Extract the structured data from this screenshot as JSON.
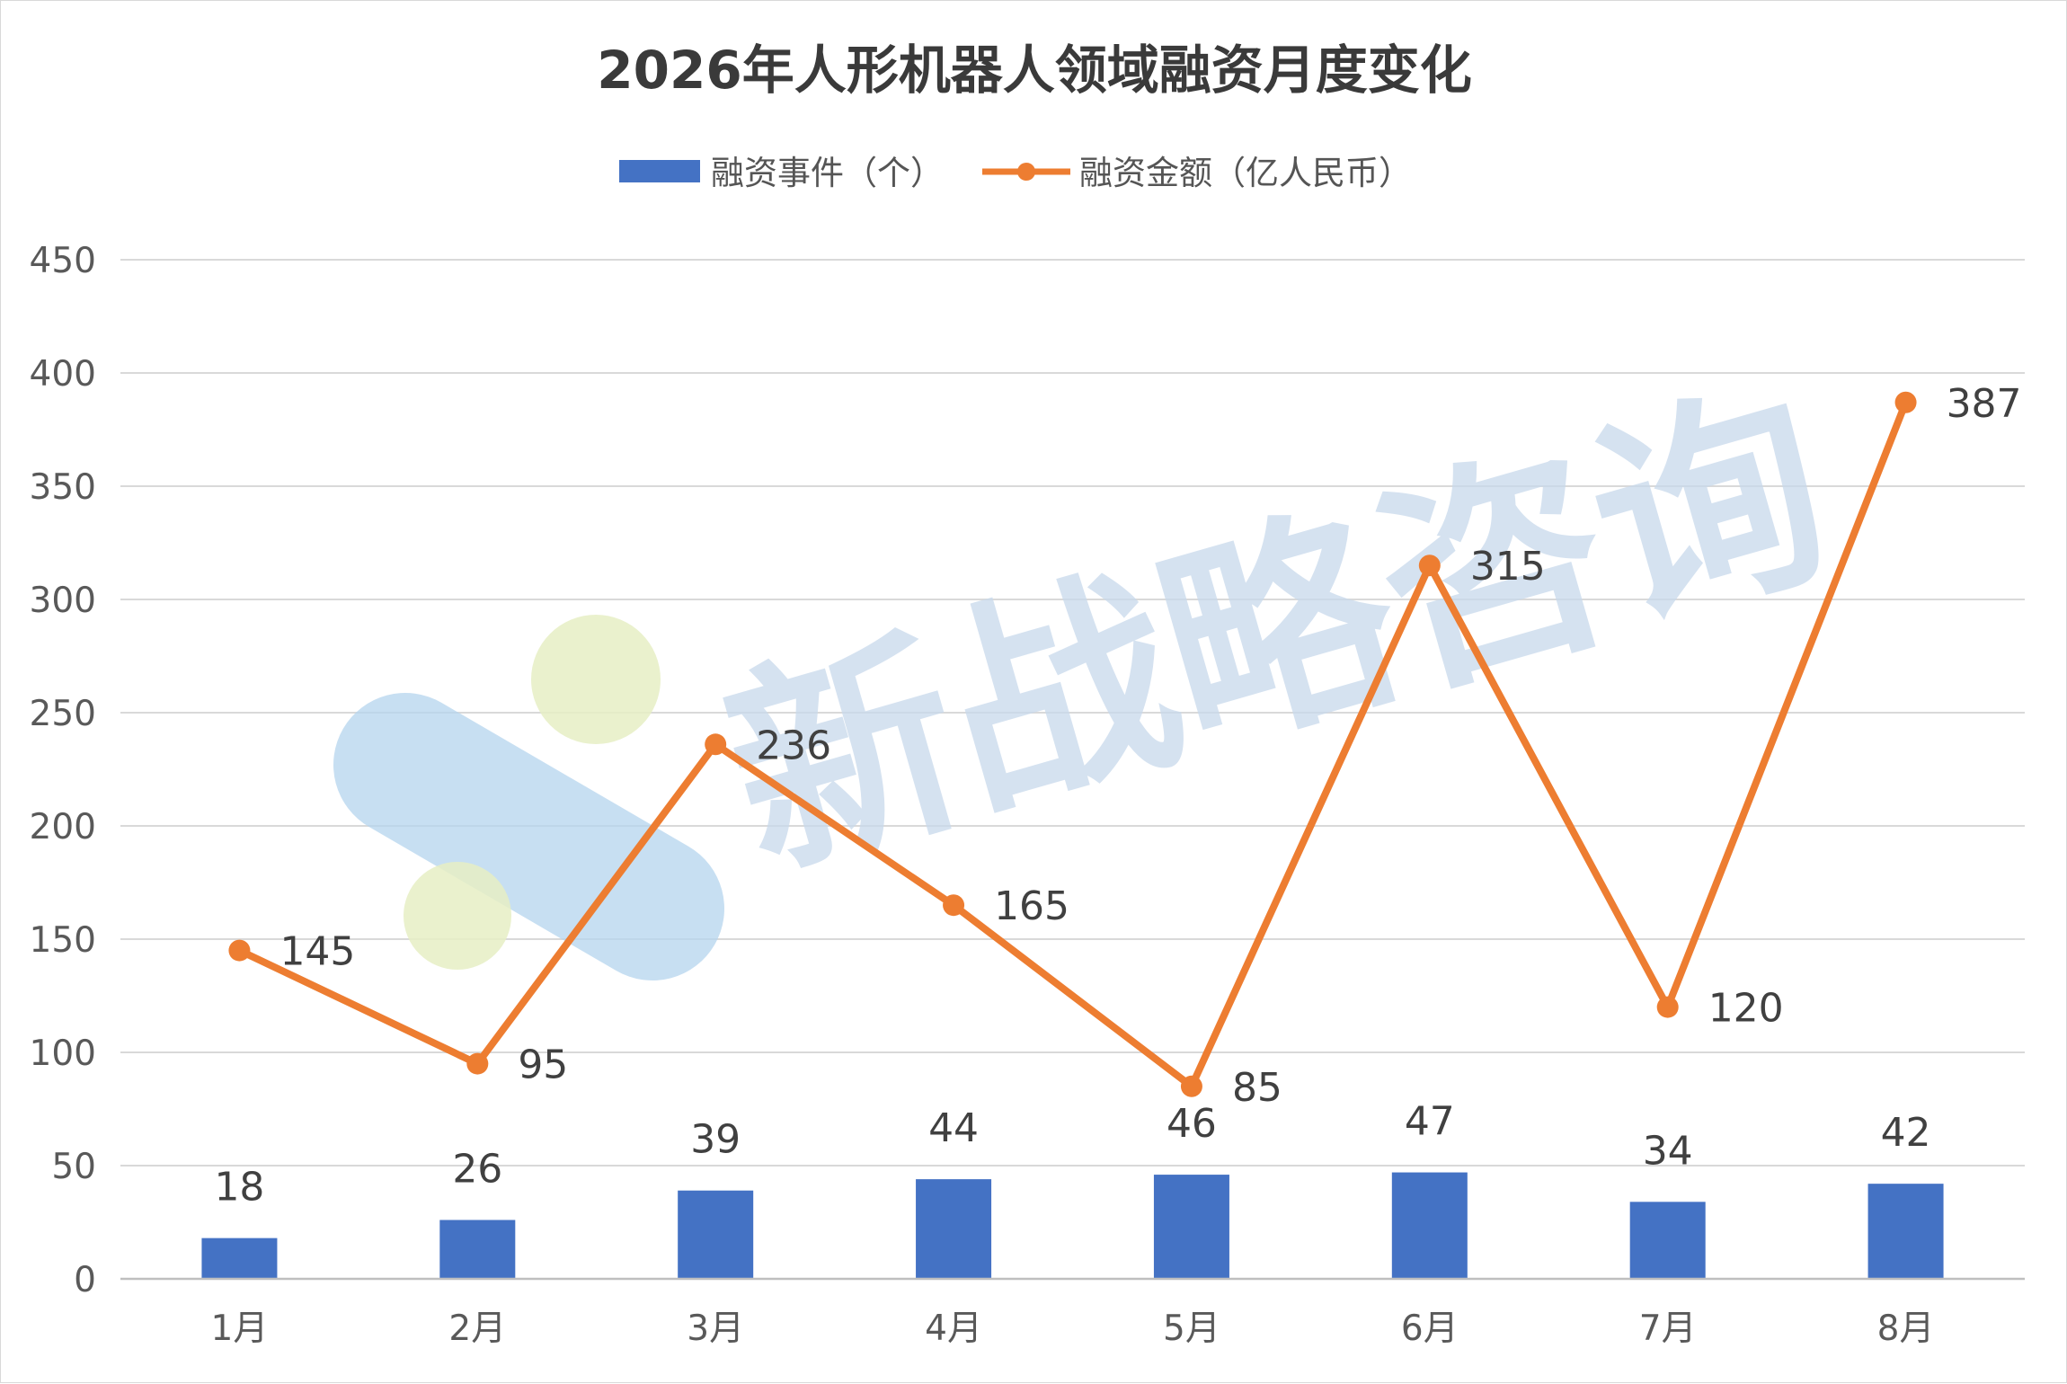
{
  "chart_data": {
    "type": "bar",
    "title": "2026年人形机器人领域融资月度变化",
    "categories": [
      "1月",
      "2月",
      "3月",
      "4月",
      "5月",
      "6月",
      "7月",
      "8月"
    ],
    "series": [
      {
        "name": "融资事件（个）",
        "type": "bar",
        "color": "#4472c4",
        "values": [
          18,
          26,
          39,
          44,
          46,
          47,
          34,
          42
        ]
      },
      {
        "name": "融资金额（亿人民币）",
        "type": "line",
        "color": "#ed7d31",
        "values": [
          145,
          95,
          236,
          165,
          85,
          315,
          120,
          387
        ]
      }
    ],
    "ylim": [
      0,
      450
    ],
    "yticks": [
      0,
      50,
      100,
      150,
      200,
      250,
      300,
      350,
      400,
      450
    ],
    "grid": true,
    "legend_position": "top"
  },
  "watermark": {
    "text": "新战略咨询",
    "color": "#c8d9ec"
  }
}
